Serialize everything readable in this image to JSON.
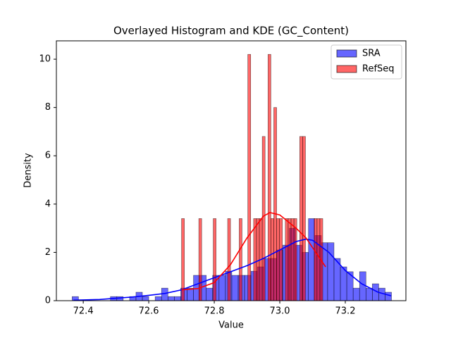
{
  "chart_data": {
    "type": "histogram",
    "title": "Overlayed Histogram and KDE (GC_Content)",
    "x_label": "Value",
    "y_label": "Density",
    "xlim": [
      72.318,
      73.385
    ],
    "ylim": [
      0,
      10.76
    ],
    "xticks": [
      72.4,
      72.6,
      72.8,
      {
        "value": 73.0,
        "label": "73.0"
      },
      73.2
    ],
    "yticks": [
      0,
      2,
      4,
      6,
      8,
      10
    ],
    "legend": "upper right",
    "series": [
      {
        "name": "SRA",
        "color": "#0000ff",
        "bins": [
          72.366,
          72.3855,
          72.405,
          72.4245,
          72.444,
          72.4635,
          72.483,
          72.5025,
          72.522,
          72.5415,
          72.561,
          72.5805,
          72.6,
          72.6195,
          72.639,
          72.6585,
          72.678,
          72.6975,
          72.717,
          72.7365,
          72.756,
          72.7755,
          72.795,
          72.8145,
          72.834,
          72.8535,
          72.873,
          72.8925,
          72.912,
          72.9315,
          72.951,
          72.9705,
          72.99,
          73.0095,
          73.029,
          73.0485,
          73.068,
          73.0875,
          73.107,
          73.1265,
          73.146,
          73.1655,
          73.185,
          73.2045,
          73.224,
          73.2435,
          73.263,
          73.2825,
          73.302,
          73.3215,
          73.341
        ],
        "values": [
          0.17,
          0,
          0,
          0,
          0,
          0,
          0.17,
          0.17,
          0,
          0.17,
          0.35,
          0.17,
          0,
          0.17,
          0.52,
          0.17,
          0.17,
          0.52,
          0.52,
          1.05,
          1.05,
          0.52,
          1.05,
          1.05,
          1.22,
          1.05,
          1.05,
          1.05,
          1.22,
          1.4,
          1.75,
          1.75,
          2.1,
          2.3,
          3.0,
          2.3,
          2.0,
          3.4,
          2.7,
          2.4,
          2.4,
          1.75,
          1.4,
          1.2,
          0.52,
          1.2,
          0.52,
          0.7,
          0.52,
          0.35
        ],
        "kde": {
          "x": [
            72.37,
            72.45,
            72.5,
            72.55,
            72.6,
            72.65,
            72.7,
            72.75,
            72.8,
            72.85,
            72.9,
            72.95,
            73.0,
            73.05,
            73.08,
            73.1,
            73.15,
            73.2,
            73.25,
            73.3,
            73.34
          ],
          "y": [
            0.02,
            0.05,
            0.1,
            0.15,
            0.22,
            0.3,
            0.45,
            0.7,
            0.95,
            1.2,
            1.45,
            1.75,
            2.1,
            2.45,
            2.55,
            2.5,
            2.0,
            1.25,
            0.7,
            0.35,
            0.2
          ]
        }
      },
      {
        "name": "RefSeq",
        "color": "#ff0000",
        "bins": [
          72.7,
          72.7088,
          72.7176,
          72.7264,
          72.7352,
          72.744,
          72.7528,
          72.7616,
          72.7704,
          72.7792,
          72.788,
          72.7968,
          72.8056,
          72.8144,
          72.8232,
          72.832,
          72.8408,
          72.8496,
          72.8584,
          72.8672,
          72.876,
          72.8848,
          72.8936,
          72.9024,
          72.9112,
          72.92,
          72.9288,
          72.9376,
          72.9464,
          72.9552,
          72.964,
          72.9728,
          72.9816,
          72.9904,
          72.9992,
          73.008,
          73.0168,
          73.0256,
          73.0344,
          73.0432,
          73.052,
          73.0608,
          73.0696,
          73.0784,
          73.0872,
          73.096,
          73.1048,
          73.1136,
          73.1224,
          73.1312,
          73.14
        ],
        "values": [
          3.4,
          0,
          0,
          0,
          0,
          0,
          3.4,
          0,
          0,
          0,
          0,
          3.4,
          0,
          0,
          0,
          0,
          3.4,
          0,
          0,
          0,
          3.4,
          0,
          0,
          10.2,
          0,
          3.4,
          3.4,
          3.4,
          6.8,
          0,
          10.2,
          3.4,
          8.0,
          3.4,
          3.4,
          0,
          3.4,
          3.4,
          3.4,
          3.4,
          0,
          6.8,
          6.8,
          0,
          0,
          0,
          3.4,
          3.4,
          3.4,
          0
        ],
        "kde": {
          "x": [
            72.7,
            72.75,
            72.8,
            72.85,
            72.9,
            72.95,
            72.97,
            73.0,
            73.05,
            73.08,
            73.1,
            73.12,
            73.14
          ],
          "y": [
            0.45,
            0.5,
            0.75,
            1.5,
            2.6,
            3.5,
            3.65,
            3.55,
            3.0,
            2.6,
            2.2,
            1.8,
            1.4
          ]
        }
      }
    ]
  }
}
